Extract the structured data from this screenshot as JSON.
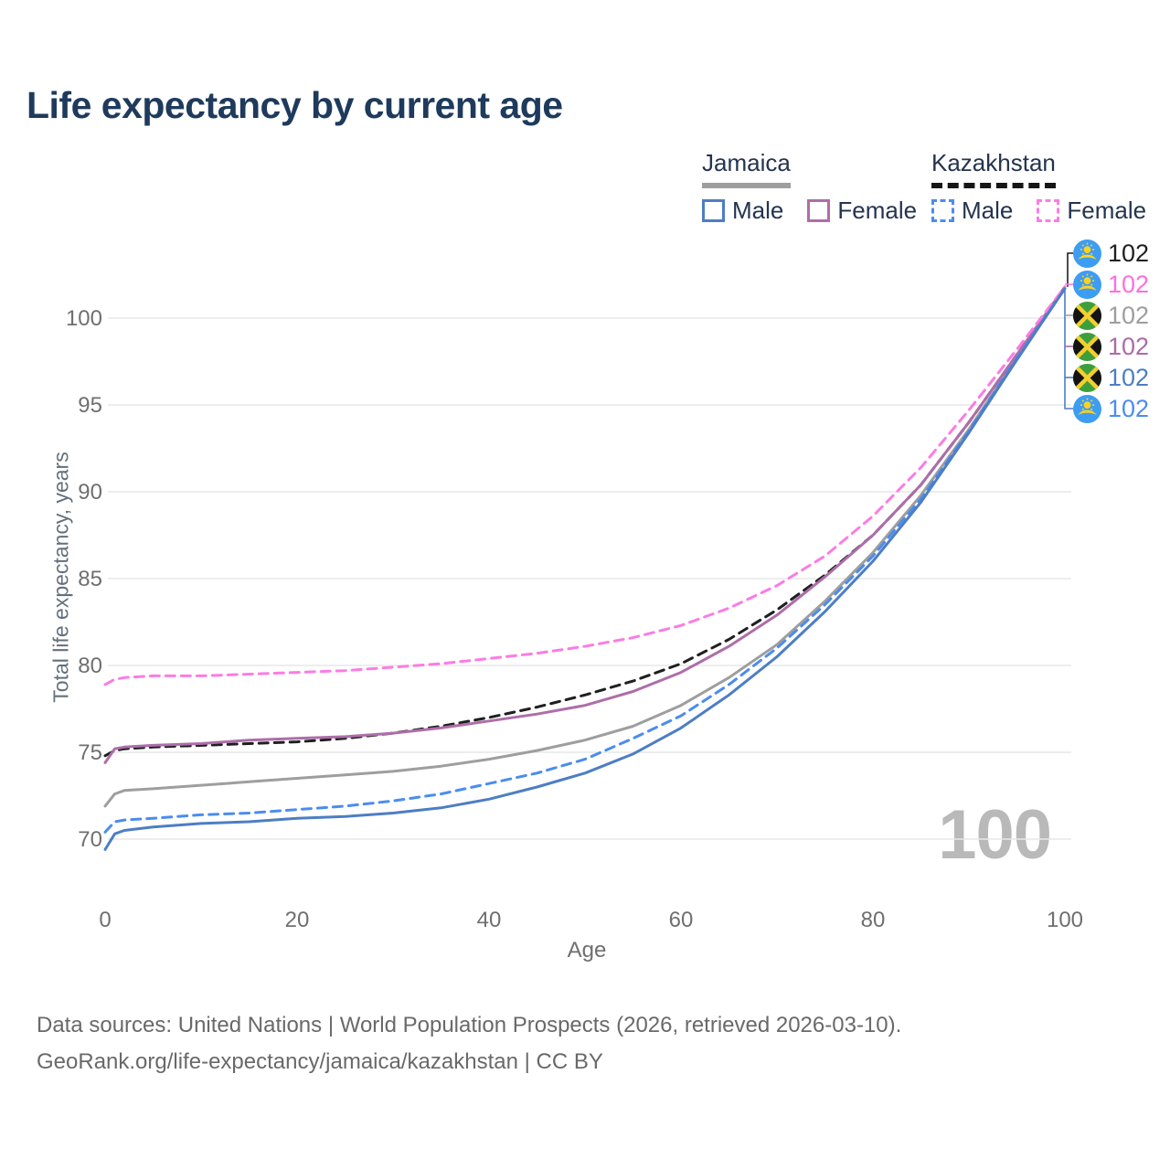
{
  "title": "Life expectancy by current age",
  "legend": {
    "jamaica": {
      "label": "Jamaica",
      "male": "Male",
      "female": "Female"
    },
    "kazakhstan": {
      "label": "Kazakhstan",
      "male": "Male",
      "female": "Female"
    }
  },
  "axes": {
    "x_title": "Age",
    "y_title": "Total life expectancy, years",
    "x_ticks": [
      "0",
      "20",
      "40",
      "60",
      "80",
      "100"
    ],
    "y_ticks": [
      "70",
      "75",
      "80",
      "85",
      "90",
      "95",
      "100"
    ]
  },
  "watermark": "100",
  "end_labels": [
    {
      "flag": "kazakhstan",
      "series": "Kazakhstan (both sexes)",
      "value": "102",
      "color": "#1f1f1f"
    },
    {
      "flag": "kazakhstan",
      "series": "Kazakhstan Female",
      "value": "102",
      "color": "#ff6ee0"
    },
    {
      "flag": "jamaica",
      "series": "Jamaica (both sexes)",
      "value": "102",
      "color": "#9e9e9e"
    },
    {
      "flag": "jamaica",
      "series": "Jamaica Female",
      "value": "102",
      "color": "#ac6ba8"
    },
    {
      "flag": "jamaica",
      "series": "Jamaica Male",
      "value": "102",
      "color": "#4d7ec3"
    },
    {
      "flag": "kazakhstan",
      "series": "Kazakhstan Male",
      "value": "102",
      "color": "#4b8cf0"
    }
  ],
  "footer": {
    "line1": "Data sources: United Nations | World Population Prospects (2026, retrieved 2026-03-10).",
    "line2": "GeoRank.org/life-expectancy/jamaica/kazakhstan | CC BY"
  },
  "chart_data": {
    "type": "line",
    "title": "Life expectancy by current age",
    "xlabel": "Age",
    "ylabel": "Total life expectancy, years",
    "xlim": [
      0,
      100
    ],
    "ylim": [
      68.5,
      103
    ],
    "grid": "horizontal",
    "legend_position": "top-right",
    "x": [
      0,
      1,
      2,
      5,
      10,
      15,
      20,
      25,
      30,
      35,
      40,
      45,
      50,
      55,
      60,
      65,
      70,
      75,
      80,
      85,
      90,
      95,
      100
    ],
    "series": [
      {
        "name": "Jamaica Male",
        "color": "#4d7ec3",
        "dash": "solid",
        "end_label": 102,
        "values": [
          69.4,
          70.3,
          70.5,
          70.7,
          70.9,
          71.0,
          71.2,
          71.3,
          71.5,
          71.8,
          72.3,
          73.0,
          73.8,
          74.9,
          76.4,
          78.3,
          80.5,
          83.1,
          86.0,
          89.4,
          93.4,
          97.6,
          101.7
        ]
      },
      {
        "name": "Jamaica Female",
        "color": "#ad6ea9",
        "dash": "solid",
        "end_label": 102,
        "values": [
          74.4,
          75.2,
          75.3,
          75.4,
          75.5,
          75.7,
          75.8,
          75.9,
          76.1,
          76.4,
          76.8,
          77.2,
          77.7,
          78.5,
          79.6,
          81.1,
          82.9,
          85.1,
          87.5,
          90.4,
          94.0,
          97.9,
          101.8
        ]
      },
      {
        "name": "Jamaica (both sexes)",
        "color": "#9e9e9e",
        "dash": "solid",
        "end_label": 102,
        "values": [
          71.9,
          72.6,
          72.8,
          72.9,
          73.1,
          73.3,
          73.5,
          73.7,
          73.9,
          74.2,
          74.6,
          75.1,
          75.7,
          76.5,
          77.7,
          79.3,
          81.2,
          83.7,
          86.5,
          89.8,
          93.6,
          97.7,
          101.7
        ]
      },
      {
        "name": "Kazakhstan Male",
        "color": "#4b8cf0",
        "dash": "dashed",
        "end_label": 102,
        "values": [
          70.4,
          71.0,
          71.1,
          71.2,
          71.4,
          71.5,
          71.7,
          71.9,
          72.2,
          72.6,
          73.2,
          73.8,
          74.6,
          75.8,
          77.1,
          78.9,
          81.0,
          83.5,
          86.3,
          89.6,
          93.5,
          97.7,
          101.7
        ]
      },
      {
        "name": "Kazakhstan Female",
        "color": "#fb7ce4",
        "dash": "dashed",
        "end_label": 102,
        "values": [
          78.9,
          79.2,
          79.3,
          79.4,
          79.4,
          79.5,
          79.6,
          79.7,
          79.9,
          80.1,
          80.4,
          80.7,
          81.1,
          81.6,
          82.3,
          83.3,
          84.6,
          86.3,
          88.6,
          91.4,
          94.7,
          98.2,
          101.8
        ]
      },
      {
        "name": "Kazakhstan (both sexes)",
        "color": "#1f1f1f",
        "dash": "dashed",
        "end_label": 102,
        "values": [
          74.8,
          75.1,
          75.2,
          75.3,
          75.4,
          75.5,
          75.6,
          75.8,
          76.1,
          76.5,
          77.0,
          77.6,
          78.3,
          79.1,
          80.1,
          81.5,
          83.2,
          85.2,
          87.5,
          90.4,
          94.0,
          97.9,
          101.8
        ]
      }
    ]
  }
}
